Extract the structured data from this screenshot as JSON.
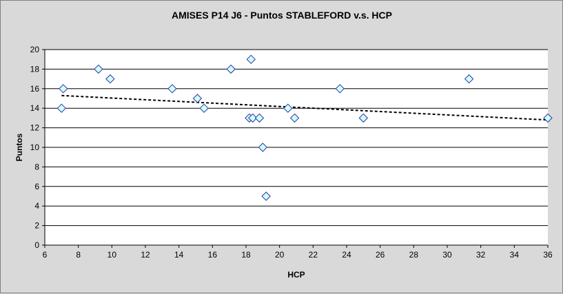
{
  "chart_data": {
    "type": "scatter",
    "title": "AMISES P14 J6 - Puntos STABLEFORD v.s. HCP",
    "xlabel": "HCP",
    "ylabel": "Puntos",
    "xlim": [
      6,
      36
    ],
    "ylim": [
      0,
      20
    ],
    "x_ticks": [
      6,
      8,
      10,
      12,
      14,
      16,
      18,
      20,
      22,
      24,
      26,
      28,
      30,
      32,
      34,
      36
    ],
    "y_ticks": [
      0,
      2,
      4,
      6,
      8,
      10,
      12,
      14,
      16,
      18,
      20
    ],
    "grid": "horizontal",
    "legend": "none",
    "marker": "diamond",
    "marker_color": "#ccffff",
    "marker_edge": "#333399",
    "points": [
      {
        "x": 7.0,
        "y": 14
      },
      {
        "x": 7.1,
        "y": 16
      },
      {
        "x": 9.2,
        "y": 18
      },
      {
        "x": 9.9,
        "y": 17
      },
      {
        "x": 13.6,
        "y": 16
      },
      {
        "x": 15.1,
        "y": 15
      },
      {
        "x": 15.5,
        "y": 14
      },
      {
        "x": 17.1,
        "y": 18
      },
      {
        "x": 18.2,
        "y": 13
      },
      {
        "x": 18.3,
        "y": 19
      },
      {
        "x": 18.4,
        "y": 13
      },
      {
        "x": 18.8,
        "y": 13
      },
      {
        "x": 19.0,
        "y": 10
      },
      {
        "x": 19.2,
        "y": 5
      },
      {
        "x": 20.5,
        "y": 14
      },
      {
        "x": 20.9,
        "y": 13
      },
      {
        "x": 23.6,
        "y": 16
      },
      {
        "x": 25.0,
        "y": 13
      },
      {
        "x": 31.3,
        "y": 17
      },
      {
        "x": 36.0,
        "y": 13
      }
    ],
    "trendline": {
      "type": "linear",
      "x": [
        7,
        36
      ],
      "y": [
        15.3,
        12.8
      ],
      "style": "dashed",
      "color": "#000000"
    }
  }
}
